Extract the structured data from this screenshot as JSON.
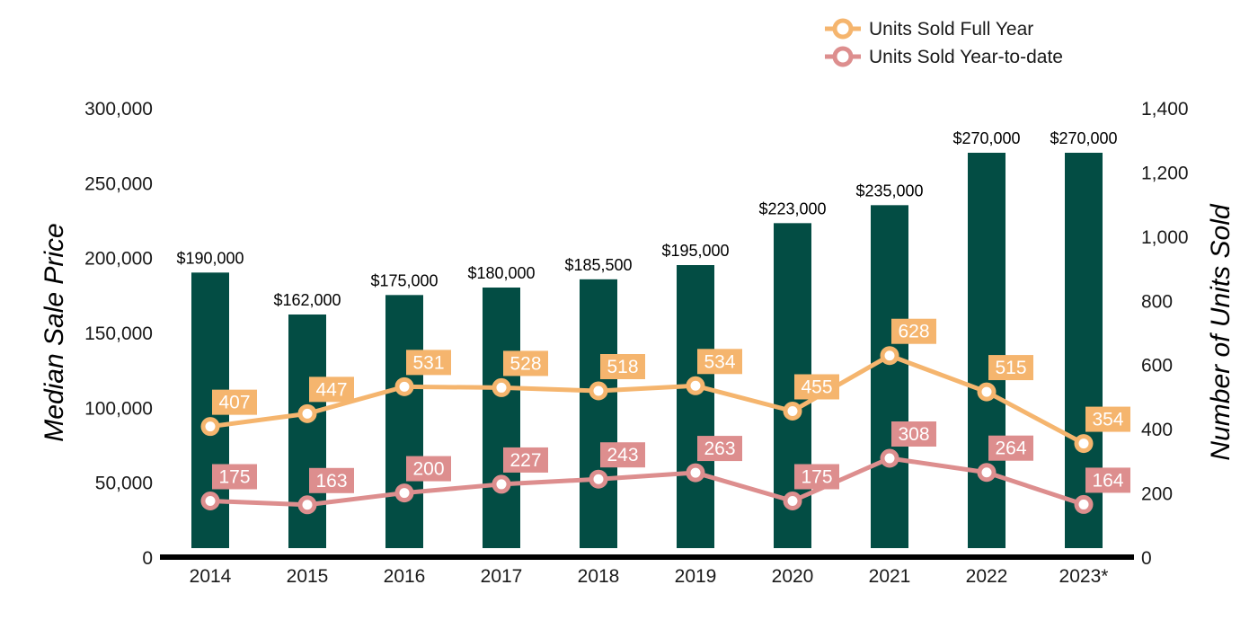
{
  "chart_data": {
    "type": "bar",
    "categories": [
      "2014",
      "2015",
      "2016",
      "2017",
      "2018",
      "2019",
      "2020",
      "2021",
      "2022",
      "2023*"
    ],
    "bars": {
      "axis": "left",
      "values": [
        190000,
        162000,
        175000,
        180000,
        185500,
        195000,
        223000,
        235000,
        270000,
        270000
      ],
      "labels": [
        "$190,000",
        "$162,000",
        "$175,000",
        "$180,000",
        "$185,500",
        "$195,000",
        "$223,000",
        "$235,000",
        "$270,000",
        "$270,000"
      ],
      "color": "#034d44"
    },
    "series": [
      {
        "name": "Units Sold Full Year",
        "type": "line",
        "axis": "right",
        "values": [
          407,
          447,
          531,
          528,
          518,
          534,
          455,
          628,
          515,
          354
        ],
        "color": "#f5b56e"
      },
      {
        "name": "Units Sold Year-to-date",
        "type": "line",
        "axis": "right",
        "values": [
          175,
          163,
          200,
          227,
          243,
          263,
          175,
          308,
          264,
          164
        ],
        "color": "#dd8e8e"
      }
    ],
    "ylabel": "Median Sale Price",
    "ylabel_right": "Number of Units Sold",
    "ylim": [
      0,
      300000
    ],
    "ylim_right": [
      0,
      1400
    ],
    "yticks": [
      "0",
      "50,000",
      "100,000",
      "150,000",
      "200,000",
      "250,000",
      "300,000"
    ],
    "yticks_right": [
      "0",
      "200",
      "400",
      "600",
      "800",
      "1,000",
      "1,200",
      "1,400"
    ],
    "grid": false,
    "legend_position": "top-right"
  }
}
